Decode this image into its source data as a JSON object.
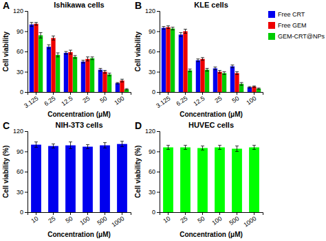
{
  "chart_data": [
    {
      "type": "bar",
      "title": "Ishikawa cells",
      "annotations": [
        "A"
      ],
      "categories": [
        "3.125",
        "6.25",
        "12.5",
        "25",
        "50",
        "100"
      ],
      "series": [
        {
          "color": "#0000EE",
          "values": [
            100,
            67,
            58,
            45,
            33,
            13
          ],
          "errors": [
            3,
            3,
            2,
            2,
            2,
            1
          ]
        },
        {
          "color": "#EE0000",
          "values": [
            101,
            80,
            59,
            49,
            30,
            17
          ],
          "errors": [
            2,
            3,
            3,
            3,
            2,
            2
          ]
        },
        {
          "color": "#00CC00",
          "values": [
            84,
            55,
            52,
            50,
            26,
            4
          ],
          "errors": [
            4,
            3,
            2,
            2,
            2,
            1
          ]
        }
      ],
      "ylabel": "Cell viability",
      "xlabel": "Concentration (μM)",
      "ylim": [
        0,
        120
      ],
      "yticks": [
        0,
        30,
        60,
        90,
        120
      ]
    },
    {
      "type": "bar",
      "title": "KLE cells",
      "annotations": [
        "B"
      ],
      "categories": [
        "3.125",
        "6.25",
        "12.5",
        "25",
        "50",
        "100"
      ],
      "series": [
        {
          "name": "Free CRT",
          "color": "#0000EE",
          "values": [
            95,
            85,
            47,
            35,
            38,
            7
          ],
          "errors": [
            2,
            3,
            2,
            2,
            2,
            1
          ]
        },
        {
          "name": "Free GEM",
          "color": "#EE0000",
          "values": [
            96,
            90,
            49,
            30,
            28,
            8
          ],
          "errors": [
            2,
            3,
            2,
            2,
            2,
            1
          ]
        },
        {
          "name": "GEM-CRT@NPs",
          "color": "#00CC00",
          "values": [
            94,
            32,
            33,
            28,
            12,
            5
          ],
          "errors": [
            2,
            2,
            2,
            2,
            2,
            1
          ]
        }
      ],
      "legend": "right",
      "ylabel": "Cell viability",
      "xlabel": "Concentration (μM)",
      "ylim": [
        0,
        120
      ],
      "yticks": [
        0,
        30,
        60,
        90,
        120
      ]
    },
    {
      "type": "bar",
      "title": "NIH-3T3 cells",
      "annotations": [
        "C"
      ],
      "categories": [
        "10",
        "25",
        "50",
        "100",
        "500",
        "1000"
      ],
      "series": [
        {
          "color": "#0000EE",
          "values": [
            100,
            98,
            99,
            97,
            99,
            101
          ],
          "errors": [
            4,
            3,
            5,
            3,
            4,
            4
          ]
        }
      ],
      "ylabel": "Cell viability (%)",
      "xlabel": "Concentration (μM)",
      "ylim": [
        0,
        120
      ],
      "yticks": [
        0,
        30,
        60,
        90,
        120
      ]
    },
    {
      "type": "bar",
      "title": "HUVEC cells",
      "annotations": [
        "D"
      ],
      "categories": [
        "10",
        "25",
        "50",
        "100",
        "500",
        "1000"
      ],
      "series": [
        {
          "color": "#00FF00",
          "values": [
            96,
            96,
            95,
            96,
            94,
            96
          ],
          "errors": [
            3,
            3,
            3,
            3,
            4,
            3
          ]
        }
      ],
      "ylabel": "Cell viability (%)",
      "xlabel": "Concentration (μM)",
      "ylim": [
        0,
        120
      ],
      "yticks": [
        0,
        30,
        60,
        90,
        120
      ]
    }
  ]
}
